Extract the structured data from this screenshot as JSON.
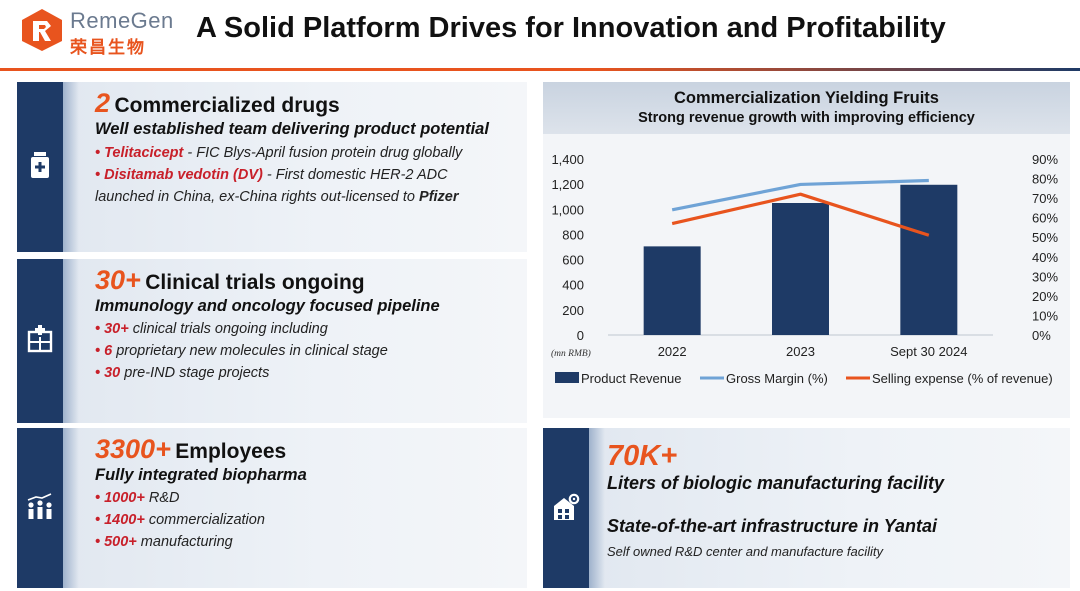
{
  "brand": {
    "name_en": "RemeGen",
    "name_cn": "荣昌生物",
    "colors": {
      "orange": "#e8541e",
      "navy": "#1e3a66",
      "red": "#c8202a",
      "light_blue": "#6fa3d6"
    }
  },
  "header": {
    "title": "A Solid Platform Drives for Innovation and Profitability"
  },
  "panels": {
    "drugs": {
      "icon": "medicine-bottle-icon",
      "big": "2",
      "heading": "Commercialized drugs",
      "subheading": "Well established team delivering product potential",
      "bullet1_name": "• Telitacicept",
      "bullet1_text": " - FIC Blys-April fusion protein drug globally",
      "bullet2_name": "• Disitamab vedotin (DV)",
      "bullet2_text": " - First domestic HER-2 ADC",
      "bullet2_cont": "launched in China, ex-China rights out-licensed to ",
      "bullet2_partner": "Pfizer"
    },
    "trials": {
      "icon": "clinical-building-icon",
      "big": "30+",
      "heading": "Clinical trials ongoing",
      "subheading": "Immunology and oncology focused pipeline",
      "items": [
        {
          "num": "30+",
          "text": " clinical trials ongoing including"
        },
        {
          "num": "6",
          "text": " proprietary new molecules in clinical stage"
        },
        {
          "num": "30",
          "text": " pre-IND stage projects"
        }
      ]
    },
    "employees": {
      "icon": "people-growth-icon",
      "big": "3300+",
      "heading": "Employees",
      "subheading": "Fully integrated biopharma",
      "items": [
        {
          "num": "1000+",
          "text": " R&D"
        },
        {
          "num": "1400+",
          "text": " commercialization"
        },
        {
          "num": "500+",
          "text": " manufacturing"
        }
      ]
    },
    "facility": {
      "icon": "factory-gear-icon",
      "big": "70K+",
      "line1": "Liters of biologic manufacturing facility",
      "line2": "State-of-the-art infrastructure in Yantai",
      "line3": "Self owned R&D center and manufacture facility"
    }
  },
  "chart_data": {
    "type": "bar",
    "title": "Commercialization Yielding Fruits",
    "subtitle": "Strong revenue growth with improving efficiency",
    "unit_label": "(mn RMB)",
    "categories": [
      "2022",
      "2023",
      "Sept 30 2024"
    ],
    "ylim": [
      0,
      1400
    ],
    "y_ticks": [
      "1,400",
      "1,200",
      "1,000",
      "800",
      "600",
      "400",
      "200",
      "0"
    ],
    "y2lim": [
      0,
      90
    ],
    "y2_ticks": [
      "90%",
      "80%",
      "70%",
      "60%",
      "50%",
      "40%",
      "30%",
      "20%",
      "10%",
      "0%"
    ],
    "series": [
      {
        "name": "Product Revenue",
        "kind": "bar",
        "axis": "left",
        "color": "#1e3a66",
        "values": [
          705,
          1050,
          1195
        ]
      },
      {
        "name": "Gross Margin (%)",
        "kind": "line",
        "axis": "right",
        "color": "#6fa3d6",
        "values": [
          64,
          77,
          79
        ]
      },
      {
        "name": "Selling expense (% of revenue)",
        "kind": "line",
        "axis": "right",
        "color": "#e8541e",
        "values": [
          57,
          72,
          51
        ]
      }
    ],
    "legend_position": "bottom"
  }
}
